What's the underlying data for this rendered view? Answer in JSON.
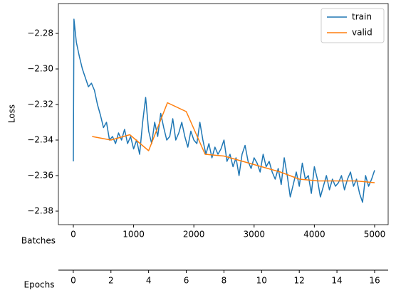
{
  "chart_data": {
    "type": "line",
    "ylabel": "Loss",
    "xlabel": "Batches",
    "x2label": "Epochs",
    "xlim": [
      -248,
      5225
    ],
    "xticks": [
      0,
      1000,
      2000,
      3000,
      4000,
      5000
    ],
    "x2lim": [
      -0.79,
      16.72
    ],
    "x2ticks": [
      0,
      2,
      4,
      6,
      8,
      10,
      12,
      14,
      16
    ],
    "ylim": [
      -2.3876,
      -2.2632
    ],
    "yticks": [
      {
        "value": -2.28,
        "label": "−2.28"
      },
      {
        "value": -2.3,
        "label": "−2.30"
      },
      {
        "value": -2.32,
        "label": "−2.32"
      },
      {
        "value": -2.34,
        "label": "−2.34"
      },
      {
        "value": -2.36,
        "label": "−2.36"
      },
      {
        "value": -2.38,
        "label": "−2.38"
      }
    ],
    "legend": "upper right",
    "series": [
      {
        "name": "train",
        "color": "#1f77b4",
        "x": [
          0,
          10,
          50,
          100,
          150,
          200,
          250,
          300,
          350,
          400,
          450,
          500,
          550,
          600,
          650,
          700,
          750,
          800,
          850,
          900,
          950,
          1000,
          1050,
          1100,
          1150,
          1200,
          1250,
          1300,
          1350,
          1400,
          1450,
          1500,
          1550,
          1600,
          1650,
          1700,
          1750,
          1800,
          1850,
          1900,
          1950,
          2000,
          2050,
          2100,
          2150,
          2200,
          2250,
          2300,
          2350,
          2400,
          2450,
          2500,
          2550,
          2600,
          2650,
          2700,
          2750,
          2800,
          2850,
          2900,
          2950,
          3000,
          3050,
          3100,
          3150,
          3200,
          3250,
          3300,
          3350,
          3400,
          3450,
          3500,
          3550,
          3600,
          3650,
          3700,
          3750,
          3800,
          3850,
          3900,
          3950,
          4000,
          4050,
          4100,
          4150,
          4200,
          4250,
          4300,
          4350,
          4400,
          4450,
          4500,
          4550,
          4600,
          4650,
          4700,
          4750,
          4800,
          4850,
          4900,
          4950,
          5000
        ],
        "values": [
          -2.352,
          -2.272,
          -2.285,
          -2.293,
          -2.3,
          -2.305,
          -2.31,
          -2.308,
          -2.312,
          -2.32,
          -2.326,
          -2.333,
          -2.33,
          -2.34,
          -2.338,
          -2.342,
          -2.336,
          -2.34,
          -2.334,
          -2.342,
          -2.338,
          -2.345,
          -2.34,
          -2.348,
          -2.33,
          -2.316,
          -2.335,
          -2.342,
          -2.33,
          -2.338,
          -2.325,
          -2.333,
          -2.34,
          -2.338,
          -2.328,
          -2.34,
          -2.336,
          -2.33,
          -2.338,
          -2.344,
          -2.335,
          -2.34,
          -2.342,
          -2.33,
          -2.34,
          -2.348,
          -2.342,
          -2.35,
          -2.344,
          -2.348,
          -2.345,
          -2.34,
          -2.352,
          -2.348,
          -2.355,
          -2.35,
          -2.36,
          -2.348,
          -2.343,
          -2.352,
          -2.356,
          -2.35,
          -2.353,
          -2.358,
          -2.348,
          -2.355,
          -2.352,
          -2.358,
          -2.362,
          -2.356,
          -2.365,
          -2.35,
          -2.36,
          -2.372,
          -2.365,
          -2.358,
          -2.366,
          -2.353,
          -2.362,
          -2.36,
          -2.37,
          -2.355,
          -2.362,
          -2.372,
          -2.366,
          -2.36,
          -2.368,
          -2.362,
          -2.366,
          -2.364,
          -2.36,
          -2.368,
          -2.362,
          -2.358,
          -2.366,
          -2.362,
          -2.37,
          -2.375,
          -2.36,
          -2.366,
          -2.362,
          -2.357
        ]
      },
      {
        "name": "valid",
        "color": "#ff7f0e",
        "xaxis": "x2",
        "x": [
          1,
          2,
          3,
          4,
          5,
          6,
          7,
          8,
          9,
          10,
          11,
          12,
          13,
          14,
          15,
          16
        ],
        "values": [
          -2.338,
          -2.34,
          -2.337,
          -2.346,
          -2.319,
          -2.324,
          -2.348,
          -2.349,
          -2.352,
          -2.355,
          -2.358,
          -2.362,
          -2.363,
          -2.363,
          -2.363,
          -2.364
        ]
      }
    ]
  }
}
